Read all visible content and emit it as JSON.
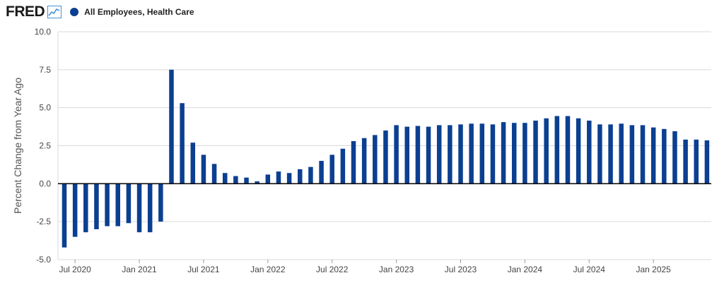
{
  "header": {
    "logo_text": "FRED",
    "logo_icon": "line-chart-icon",
    "legend_label": "All Employees, Health Care"
  },
  "colors": {
    "series": "#0b3f91",
    "grid": "#d9d9d9",
    "zero_line": "#000000",
    "logo_icon": "#4a90d9"
  },
  "chart_data": {
    "type": "bar",
    "ylabel": "Percent Change from Year Ago",
    "ylim": [
      -5.0,
      10.0
    ],
    "yticks": [
      "-5.0",
      "-2.5",
      "0.0",
      "2.5",
      "5.0",
      "7.5",
      "10.0"
    ],
    "xticks": [
      "Jul 2020",
      "Jan 2021",
      "Jul 2021",
      "Jan 2022",
      "Jul 2022",
      "Jan 2023",
      "Jul 2023",
      "Jan 2024",
      "Jul 2024",
      "Jan 2025"
    ],
    "grid": true,
    "legend": "top-left",
    "series": [
      {
        "name": "All Employees, Health Care",
        "categories": [
          "2020-06",
          "2020-07",
          "2020-08",
          "2020-09",
          "2020-10",
          "2020-11",
          "2020-12",
          "2021-01",
          "2021-02",
          "2021-03",
          "2021-04",
          "2021-05",
          "2021-06",
          "2021-07",
          "2021-08",
          "2021-09",
          "2021-10",
          "2021-11",
          "2021-12",
          "2022-01",
          "2022-02",
          "2022-03",
          "2022-04",
          "2022-05",
          "2022-06",
          "2022-07",
          "2022-08",
          "2022-09",
          "2022-10",
          "2022-11",
          "2022-12",
          "2023-01",
          "2023-02",
          "2023-03",
          "2023-04",
          "2023-05",
          "2023-06",
          "2023-07",
          "2023-08",
          "2023-09",
          "2023-10",
          "2023-11",
          "2023-12",
          "2024-01",
          "2024-02",
          "2024-03",
          "2024-04",
          "2024-05",
          "2024-06",
          "2024-07",
          "2024-08",
          "2024-09",
          "2024-10",
          "2024-11",
          "2024-12",
          "2025-01",
          "2025-02",
          "2025-03",
          "2025-04",
          "2025-05",
          "2025-06"
        ],
        "values": [
          -4.2,
          -3.5,
          -3.2,
          -3.0,
          -2.8,
          -2.8,
          -2.6,
          -3.2,
          -3.2,
          -2.5,
          7.5,
          5.3,
          2.7,
          1.9,
          1.3,
          0.7,
          0.5,
          0.4,
          0.15,
          0.6,
          0.8,
          0.7,
          0.95,
          1.1,
          1.5,
          1.9,
          2.3,
          2.8,
          3.0,
          3.2,
          3.5,
          3.85,
          3.75,
          3.8,
          3.75,
          3.85,
          3.85,
          3.9,
          3.95,
          3.95,
          3.9,
          4.05,
          4.0,
          4.0,
          4.15,
          4.3,
          4.45,
          4.45,
          4.3,
          4.15,
          3.9,
          3.9,
          3.95,
          3.85,
          3.85,
          3.7,
          3.6,
          3.45,
          2.9,
          2.9,
          2.85
        ]
      }
    ]
  }
}
